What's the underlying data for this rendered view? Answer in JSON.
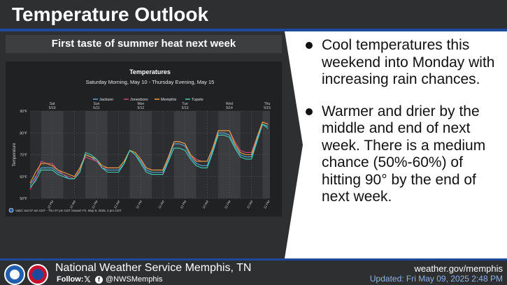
{
  "header": {
    "title": "Temperature Outlook"
  },
  "left": {
    "subtitle": "First taste of summer heat next week"
  },
  "right": {
    "bullets": [
      "Cool temperatures this weekend into Monday with increasing rain chances.",
      "Warmer and drier by the middle and end of next week. There is a medium chance (50%-60%) of hitting 90° by the end of next week."
    ]
  },
  "footer": {
    "office": "National Weather Service Memphis, TN",
    "follow_label": "Follow:",
    "x_glyph": "𝕏",
    "fb_glyph": "f",
    "handle": "@NWSMemphis",
    "website": "weather.gov/memphis",
    "updated": "Updated: Fri May 09, 2025 2:48 PM"
  },
  "colors": {
    "Jackson": "#5ba9e0",
    "Jonesboro": "#d6457a",
    "Memphis": "#f0a43a",
    "Tupelo": "#3dd6b8",
    "brand_blue": "#1d4a9c"
  },
  "chart_data": {
    "type": "line",
    "title": "Temperatures",
    "subtitle": "Saturday Morning, May 10 - Thursday Evening, May 15",
    "ylabel": "Temperature",
    "ylim": [
      50,
      90
    ],
    "yticks": [
      50,
      60,
      70,
      80,
      90
    ],
    "ytick_labels": [
      "50°F",
      "60°F",
      "70°F",
      "80°F",
      "90°F"
    ],
    "xlim": [
      0,
      130
    ],
    "day_labels": [
      {
        "x": 12,
        "line1": "Sat",
        "line2": "5/10"
      },
      {
        "x": 36,
        "line1": "Sun",
        "line2": "5/11"
      },
      {
        "x": 60,
        "line1": "Mon",
        "line2": "5/12"
      },
      {
        "x": 84,
        "line1": "Tue",
        "line2": "5/13"
      },
      {
        "x": 108,
        "line1": "Wed",
        "line2": "5/14"
      },
      {
        "x": 132,
        "line1": "Thu",
        "line2": "5/15"
      }
    ],
    "bottom_ticks": [
      {
        "x": 12,
        "label": "12 PM"
      },
      {
        "x": 24,
        "label": "12 AM"
      },
      {
        "x": 36,
        "label": "12 PM"
      },
      {
        "x": 48,
        "label": "12 AM"
      },
      {
        "x": 60,
        "label": "12 PM"
      },
      {
        "x": 72,
        "label": "12 AM"
      },
      {
        "x": 84,
        "label": "12 PM"
      },
      {
        "x": 96,
        "label": "12 AM"
      },
      {
        "x": 108,
        "label": "12 PM"
      },
      {
        "x": 120,
        "label": "12 AM"
      },
      {
        "x": 132,
        "label": "12 PM"
      }
    ],
    "night_bands": [
      [
        0,
        6
      ],
      [
        18,
        30
      ],
      [
        42,
        54
      ],
      [
        66,
        78
      ],
      [
        90,
        102
      ],
      [
        114,
        126
      ]
    ],
    "x": [
      0,
      3,
      6,
      9,
      12,
      15,
      18,
      21,
      24,
      27,
      30,
      33,
      36,
      39,
      42,
      45,
      48,
      51,
      54,
      57,
      60,
      63,
      66,
      69,
      72,
      75,
      78,
      81,
      84,
      87,
      90,
      93,
      96,
      99,
      102,
      105,
      108,
      111,
      114,
      117,
      120,
      123,
      126,
      129
    ],
    "series": [
      {
        "name": "Jackson",
        "values": [
          56,
          60,
          64,
          64,
          64,
          62,
          61,
          59,
          59,
          63,
          70,
          69,
          67,
          64,
          63,
          63,
          63,
          66,
          72,
          70,
          67,
          63,
          62,
          62,
          62,
          68,
          75,
          75,
          74,
          69,
          66,
          65,
          65,
          72,
          80,
          80,
          79,
          74,
          70,
          69,
          69,
          77,
          84,
          83
        ]
      },
      {
        "name": "Jonesboro",
        "values": [
          54,
          59,
          67,
          66,
          66,
          63,
          61,
          60,
          59,
          63,
          69,
          68,
          67,
          64,
          64,
          64,
          64,
          67,
          72,
          71,
          68,
          64,
          63,
          63,
          63,
          69,
          76,
          76,
          75,
          70,
          68,
          67,
          67,
          73,
          81,
          81,
          81,
          76,
          72,
          71,
          71,
          78,
          85,
          84
        ]
      },
      {
        "name": "Memphis",
        "values": [
          57,
          62,
          66,
          66,
          65,
          63,
          62,
          61,
          60,
          64,
          70,
          69,
          68,
          65,
          64,
          64,
          64,
          67,
          72,
          71,
          68,
          64,
          63,
          63,
          63,
          69,
          76,
          76,
          75,
          70,
          67,
          67,
          67,
          73,
          81,
          81,
          81,
          75,
          71,
          70,
          70,
          78,
          85,
          84
        ]
      },
      {
        "name": "Tupelo",
        "values": [
          55,
          58,
          63,
          63,
          63,
          61,
          60,
          59,
          59,
          62,
          71,
          70,
          68,
          64,
          62,
          62,
          62,
          66,
          72,
          70,
          66,
          62,
          61,
          61,
          61,
          67,
          73,
          73,
          72,
          68,
          65,
          64,
          64,
          71,
          79,
          79,
          78,
          73,
          69,
          68,
          68,
          76,
          84,
          82
        ]
      }
    ],
    "legend_position": "top-center",
    "grid": true,
    "footer_note": "Valid: Sat 07 am CDT - Thu 07 pm CDT    Issued: Fri, May 9, 2025, 2 pm CDT"
  }
}
